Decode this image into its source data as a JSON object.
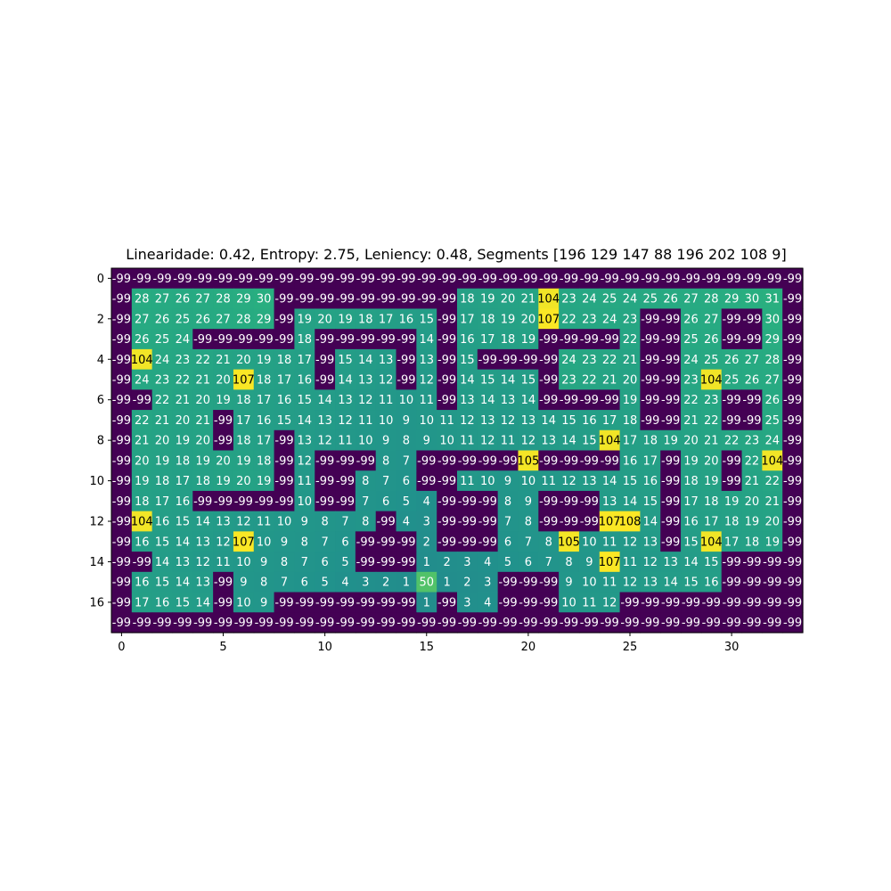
{
  "chart_data": {
    "type": "heatmap",
    "title": "Linearidade: 0.42, Entropy: 2.75, Leniency: 0.48, Segments [196 129 147  88 196 202 108   9]",
    "xlabel": "",
    "ylabel": "",
    "colormap": "viridis",
    "color_range": [
      -99,
      108
    ],
    "x_ticks": [
      0,
      5,
      10,
      15,
      20,
      25,
      30
    ],
    "y_ticks": [
      0,
      2,
      4,
      6,
      8,
      10,
      12,
      14,
      16
    ],
    "grid": [
      [
        -99,
        -99,
        -99,
        -99,
        -99,
        -99,
        -99,
        -99,
        -99,
        -99,
        -99,
        -99,
        -99,
        -99,
        -99,
        -99,
        -99,
        -99,
        -99,
        -99,
        -99,
        -99,
        -99,
        -99,
        -99,
        -99,
        -99,
        -99,
        -99,
        -99,
        -99,
        -99,
        -99,
        -99
      ],
      [
        -99,
        28,
        27,
        26,
        27,
        28,
        29,
        30,
        -99,
        -99,
        -99,
        -99,
        -99,
        -99,
        -99,
        -99,
        -99,
        18,
        19,
        20,
        21,
        104,
        23,
        24,
        25,
        24,
        25,
        26,
        27,
        28,
        29,
        30,
        31,
        -99
      ],
      [
        -99,
        27,
        26,
        25,
        26,
        27,
        28,
        29,
        -99,
        19,
        20,
        19,
        18,
        17,
        16,
        15,
        -99,
        17,
        18,
        19,
        20,
        107,
        22,
        23,
        24,
        23,
        -99,
        -99,
        26,
        27,
        -99,
        -99,
        30,
        -99
      ],
      [
        -99,
        26,
        25,
        24,
        -99,
        -99,
        -99,
        -99,
        -99,
        18,
        -99,
        -99,
        -99,
        -99,
        -99,
        14,
        -99,
        16,
        17,
        18,
        19,
        -99,
        -99,
        -99,
        -99,
        22,
        -99,
        -99,
        25,
        26,
        -99,
        -99,
        29,
        -99
      ],
      [
        -99,
        104,
        24,
        23,
        22,
        21,
        20,
        19,
        18,
        17,
        -99,
        15,
        14,
        13,
        -99,
        13,
        -99,
        15,
        -99,
        -99,
        -99,
        -99,
        24,
        23,
        22,
        21,
        -99,
        -99,
        24,
        25,
        26,
        27,
        28,
        -99
      ],
      [
        -99,
        24,
        23,
        22,
        21,
        20,
        107,
        18,
        17,
        16,
        -99,
        14,
        13,
        12,
        -99,
        12,
        -99,
        14,
        15,
        14,
        15,
        -99,
        23,
        22,
        21,
        20,
        -99,
        -99,
        23,
        104,
        25,
        26,
        27,
        -99
      ],
      [
        -99,
        -99,
        22,
        21,
        20,
        19,
        18,
        17,
        16,
        15,
        14,
        13,
        12,
        11,
        10,
        11,
        -99,
        13,
        14,
        13,
        14,
        -99,
        -99,
        -99,
        -99,
        19,
        -99,
        -99,
        22,
        23,
        -99,
        -99,
        26,
        -99
      ],
      [
        -99,
        22,
        21,
        20,
        21,
        -99,
        17,
        16,
        15,
        14,
        13,
        12,
        11,
        10,
        9,
        10,
        11,
        12,
        13,
        12,
        13,
        14,
        15,
        16,
        17,
        18,
        -99,
        -99,
        21,
        22,
        -99,
        -99,
        25,
        -99
      ],
      [
        -99,
        21,
        20,
        19,
        20,
        -99,
        18,
        17,
        -99,
        13,
        12,
        11,
        10,
        9,
        8,
        9,
        10,
        11,
        12,
        11,
        12,
        13,
        14,
        15,
        104,
        17,
        18,
        19,
        20,
        21,
        22,
        23,
        24,
        -99
      ],
      [
        -99,
        20,
        19,
        18,
        19,
        20,
        19,
        18,
        -99,
        12,
        -99,
        -99,
        -99,
        8,
        7,
        -99,
        -99,
        -99,
        -99,
        -99,
        105,
        -99,
        -99,
        -99,
        -99,
        16,
        17,
        -99,
        19,
        20,
        -99,
        22,
        104,
        -99
      ],
      [
        -99,
        19,
        18,
        17,
        18,
        19,
        20,
        19,
        -99,
        11,
        -99,
        -99,
        8,
        7,
        6,
        -99,
        -99,
        11,
        10,
        9,
        10,
        11,
        12,
        13,
        14,
        15,
        16,
        -99,
        18,
        19,
        -99,
        21,
        22,
        -99
      ],
      [
        -99,
        18,
        17,
        16,
        -99,
        -99,
        -99,
        -99,
        -99,
        10,
        -99,
        -99,
        7,
        6,
        5,
        4,
        -99,
        -99,
        -99,
        8,
        9,
        -99,
        -99,
        -99,
        13,
        14,
        15,
        -99,
        17,
        18,
        19,
        20,
        21,
        -99
      ],
      [
        -99,
        104,
        16,
        15,
        14,
        13,
        12,
        11,
        10,
        9,
        8,
        7,
        8,
        -99,
        4,
        3,
        -99,
        -99,
        -99,
        7,
        8,
        -99,
        -99,
        -99,
        107,
        108,
        14,
        -99,
        16,
        17,
        18,
        19,
        20,
        -99
      ],
      [
        -99,
        16,
        15,
        14,
        13,
        12,
        107,
        10,
        9,
        8,
        7,
        6,
        -99,
        -99,
        -99,
        2,
        -99,
        -99,
        -99,
        6,
        7,
        8,
        105,
        10,
        11,
        12,
        13,
        -99,
        15,
        104,
        17,
        18,
        19,
        -99
      ],
      [
        -99,
        -99,
        14,
        13,
        12,
        11,
        10,
        9,
        8,
        7,
        6,
        5,
        -99,
        -99,
        -99,
        1,
        2,
        3,
        4,
        5,
        6,
        7,
        8,
        9,
        107,
        11,
        12,
        13,
        14,
        15,
        -99,
        -99,
        -99,
        -99
      ],
      [
        -99,
        16,
        15,
        14,
        13,
        -99,
        9,
        8,
        7,
        6,
        5,
        4,
        3,
        2,
        1,
        50,
        1,
        2,
        3,
        -99,
        -99,
        -99,
        9,
        10,
        11,
        12,
        13,
        14,
        15,
        16,
        -99,
        -99,
        -99,
        -99
      ],
      [
        -99,
        17,
        16,
        15,
        14,
        -99,
        10,
        9,
        -99,
        -99,
        -99,
        -99,
        -99,
        -99,
        -99,
        1,
        -99,
        3,
        4,
        -99,
        -99,
        -99,
        10,
        11,
        12,
        -99,
        -99,
        -99,
        -99,
        -99,
        -99,
        -99,
        -99,
        -99
      ],
      [
        -99,
        -99,
        -99,
        -99,
        -99,
        -99,
        -99,
        -99,
        -99,
        -99,
        -99,
        -99,
        -99,
        -99,
        -99,
        -99,
        -99,
        -99,
        -99,
        -99,
        -99,
        -99,
        -99,
        -99,
        -99,
        -99,
        -99,
        -99,
        -99,
        -99,
        -99,
        -99,
        -99,
        -99
      ]
    ]
  }
}
